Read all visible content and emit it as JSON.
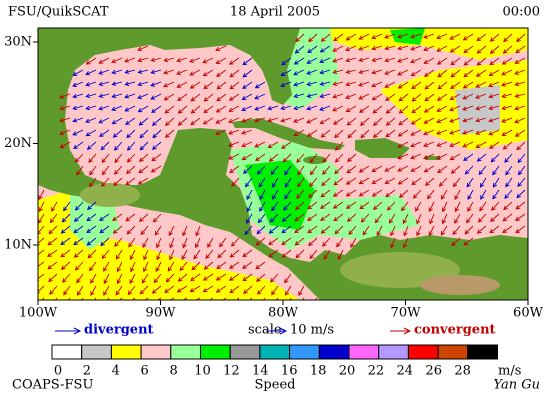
{
  "header": {
    "left": "FSU/QuikSCAT",
    "date": "18 April 2005",
    "time": "00:00"
  },
  "map": {
    "lat_ticks": [
      {
        "value": 30,
        "label": "30N"
      },
      {
        "value": 20,
        "label": "20N"
      },
      {
        "value": 10,
        "label": "10N"
      }
    ],
    "lon_ticks": [
      {
        "value": 100,
        "label": "100W"
      },
      {
        "value": 90,
        "label": "90W"
      },
      {
        "value": 80,
        "label": "80W"
      },
      {
        "value": 70,
        "label": "70W"
      },
      {
        "value": 60,
        "label": "60W"
      }
    ]
  },
  "legend": {
    "divergent": "divergent",
    "scale": "scale",
    "scale_value": "10 m/s",
    "convergent": "convergent",
    "divergent_color": "#0000cc",
    "convergent_color": "#c00000"
  },
  "colorbar": {
    "ticks": [
      0,
      2,
      4,
      6,
      8,
      10,
      12,
      14,
      16,
      18,
      20,
      22,
      24,
      26,
      28
    ],
    "colors": [
      "#ffffff",
      "#c8c8c8",
      "#ffff00",
      "#ffc8c8",
      "#99ff99",
      "#00ee00",
      "#999999",
      "#00b4b4",
      "#3399ff",
      "#0000cc",
      "#ff66ff",
      "#b399ff",
      "#ff0000",
      "#cc4400",
      "#000000"
    ],
    "unit": "m/s",
    "label": "Speed"
  },
  "footer": {
    "left": "COAPS-FSU",
    "right": "Yan Gu"
  }
}
